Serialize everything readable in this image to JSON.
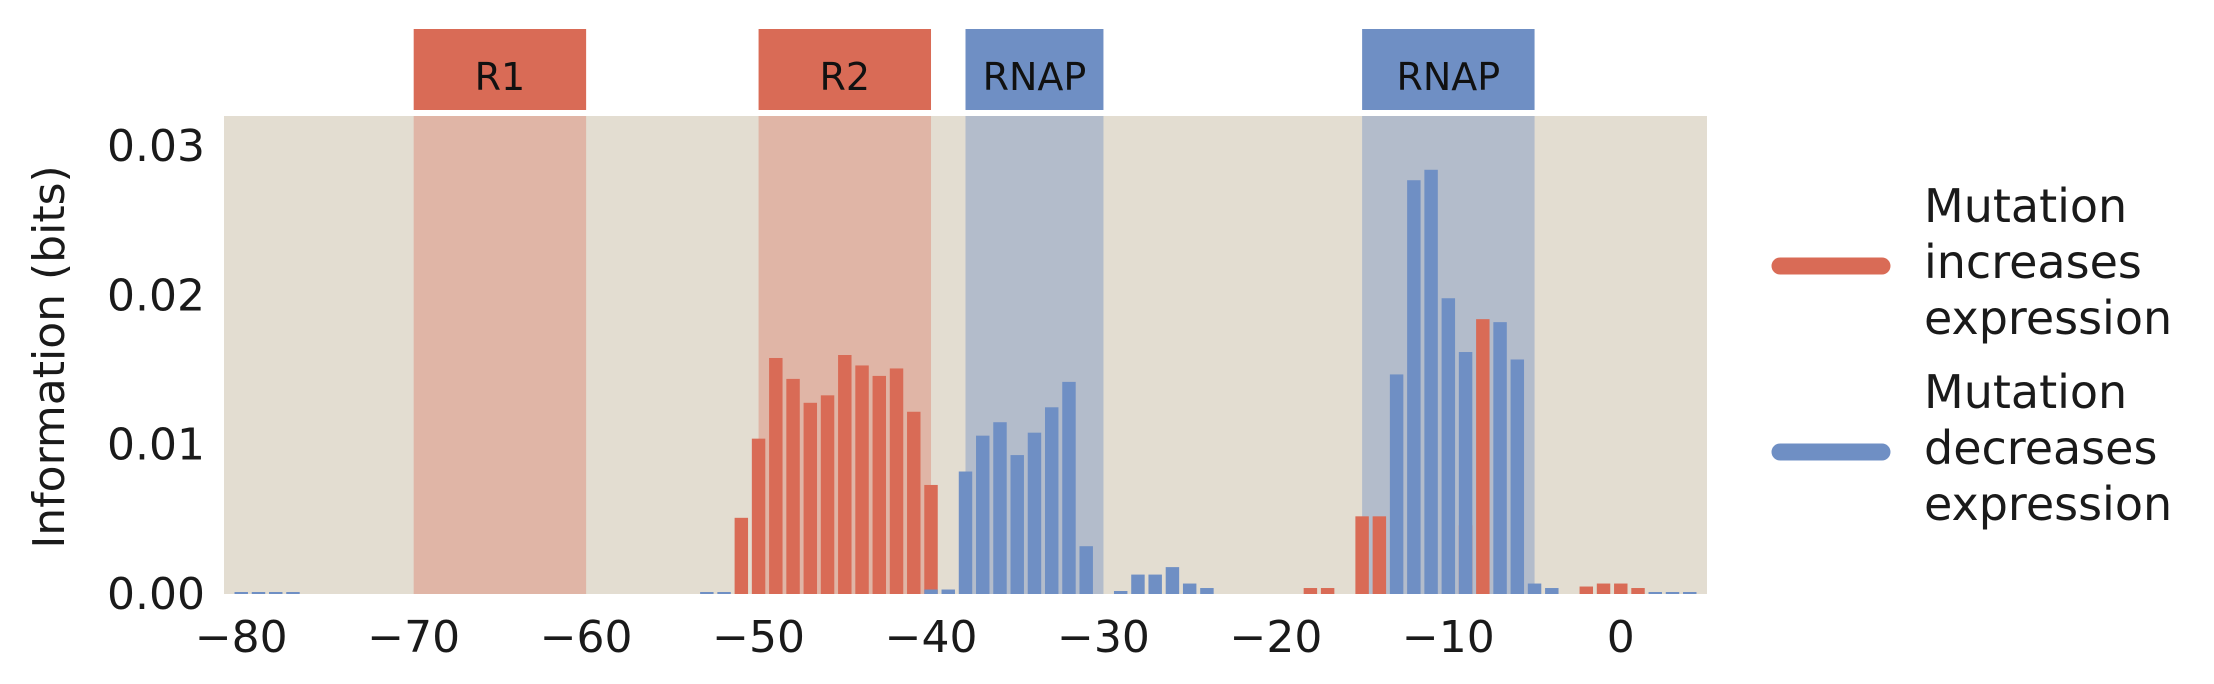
{
  "chart_data": {
    "type": "bar",
    "xlabel": "",
    "ylabel": "Information (bits)",
    "xlim": [
      -81,
      5
    ],
    "ylim": [
      0,
      0.032
    ],
    "xticks": [
      -80,
      -70,
      -60,
      -50,
      -40,
      -30,
      -20,
      -10,
      0
    ],
    "xtick_labels": [
      "−80",
      "−70",
      "−60",
      "−50",
      "−40",
      "−30",
      "−20",
      "−10",
      "0"
    ],
    "yticks": [
      0,
      0.01,
      0.02,
      0.03
    ],
    "ytick_labels": [
      "0.00",
      "0.01",
      "0.02",
      "0.03"
    ],
    "grid": false,
    "legend_placement": "right",
    "background_color": "#e3ddd1",
    "colors": {
      "increases": "#d96b56",
      "decreases": "#6f8fc4"
    },
    "regions": [
      {
        "label": "R1",
        "start": -70,
        "end": -60,
        "kind": "increases"
      },
      {
        "label": "R2",
        "start": -50,
        "end": -40,
        "kind": "increases"
      },
      {
        "label": "RNAP",
        "start": -38,
        "end": -30,
        "kind": "decreases"
      },
      {
        "label": "RNAP",
        "start": -15,
        "end": -5,
        "kind": "decreases"
      }
    ],
    "series": [
      {
        "name": "Mutation increases expression",
        "color": "#d96b56",
        "x": [
          -51,
          -50,
          -49,
          -48,
          -47,
          -46,
          -45,
          -44,
          -43,
          -42,
          -41,
          -40,
          -18,
          -17,
          -15,
          -14,
          -9,
          -8,
          -2,
          -1,
          0,
          1
        ],
        "values": [
          0.0051,
          0.0104,
          0.0158,
          0.0144,
          0.0128,
          0.0133,
          0.016,
          0.0153,
          0.0146,
          0.0151,
          0.0122,
          0.0073,
          0.0004,
          0.0004,
          0.0052,
          0.0052,
          0.0046,
          0.0184,
          0.0005,
          0.0007,
          0.0007,
          0.0004
        ]
      },
      {
        "name": "Mutation decreases expression",
        "color": "#6f8fc4",
        "x": [
          -40,
          -39,
          -38,
          -37,
          -36,
          -35,
          -34,
          -33,
          -32,
          -31,
          -29,
          -28,
          -27,
          -26,
          -25,
          -24,
          -13,
          -12,
          -11,
          -10,
          -9,
          -7,
          -6,
          -5,
          -4
        ],
        "values": [
          0.0003,
          0.0003,
          0.0082,
          0.0106,
          0.0115,
          0.0093,
          0.0108,
          0.0125,
          0.0142,
          0.0032,
          0.0002,
          0.0013,
          0.0013,
          0.0018,
          0.0007,
          0.0004,
          0.0147,
          0.0277,
          0.0284,
          0.0198,
          0.0162,
          0.0182,
          0.0157,
          0.0007,
          0.0004
        ]
      }
    ],
    "legend": [
      {
        "key": "increases",
        "lines": [
          "Mutation",
          "increases",
          "expression"
        ]
      },
      {
        "key": "decreases",
        "lines": [
          "Mutation",
          "decreases",
          "expression"
        ]
      }
    ]
  }
}
